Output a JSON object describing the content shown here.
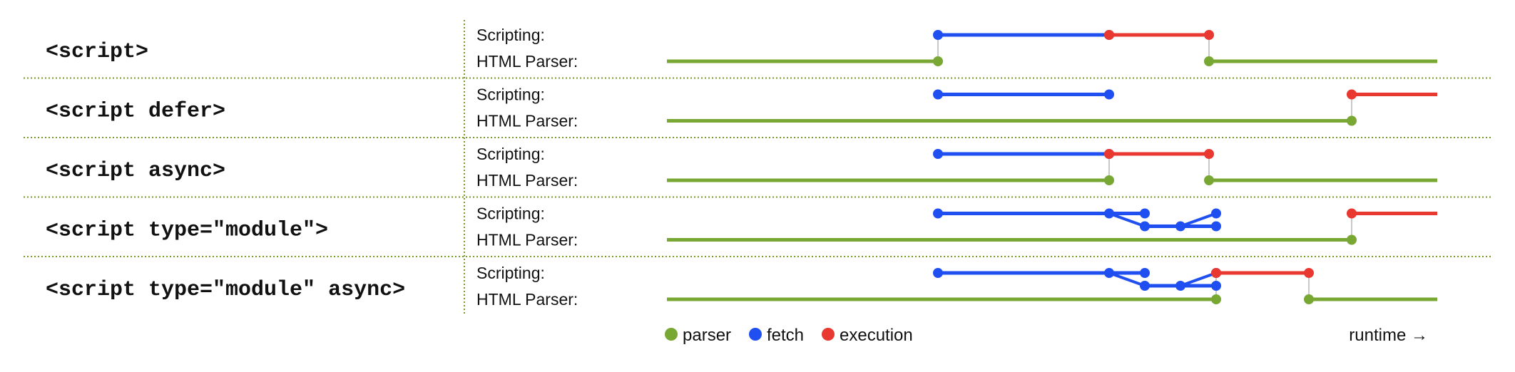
{
  "colors": {
    "parser": "#78a734",
    "fetch": "#1f4ff0",
    "execution": "#e8382f",
    "connector": "#c8c8c8",
    "separator": "#7a9a2a"
  },
  "row_labels": {
    "scripting": "Scripting:",
    "parser": "HTML Parser:"
  },
  "legend": {
    "parser": "parser",
    "fetch": "fetch",
    "execution": "execution",
    "runtime": "runtime →"
  },
  "rows": [
    {
      "label": "<script>",
      "parser": [
        [
          0,
          38
        ],
        [
          76,
          108
        ]
      ],
      "scripting": [
        {
          "type": "fetch",
          "from": 38,
          "to": 62
        },
        {
          "type": "execution",
          "from": 62,
          "to": 76
        }
      ],
      "fetch_dots": [
        38,
        62
      ],
      "exec_dots": [
        62,
        76
      ],
      "parser_dots": [
        38,
        76
      ],
      "connectors": [
        38,
        76
      ],
      "deps": []
    },
    {
      "label": "<script defer>",
      "parser": [
        [
          0,
          96
        ]
      ],
      "scripting": [
        {
          "type": "fetch",
          "from": 38,
          "to": 62
        },
        {
          "type": "execution",
          "from": 96,
          "to": 108
        }
      ],
      "fetch_dots": [
        38,
        62
      ],
      "exec_dots": [
        96
      ],
      "parser_dots": [
        96
      ],
      "connectors": [
        96
      ],
      "deps": []
    },
    {
      "label": "<script async>",
      "parser": [
        [
          0,
          62
        ],
        [
          76,
          108
        ]
      ],
      "scripting": [
        {
          "type": "fetch",
          "from": 38,
          "to": 62
        },
        {
          "type": "execution",
          "from": 62,
          "to": 76
        }
      ],
      "fetch_dots": [
        38,
        62
      ],
      "exec_dots": [
        62,
        76
      ],
      "parser_dots": [
        62,
        76
      ],
      "connectors": [
        62,
        76
      ],
      "deps": []
    },
    {
      "label": "<script type=\"module\">",
      "parser": [
        [
          0,
          96
        ]
      ],
      "scripting": [
        {
          "type": "fetch",
          "from": 38,
          "to": 62
        },
        {
          "type": "execution",
          "from": 96,
          "to": 108
        }
      ],
      "fetch_dots": [
        38,
        62
      ],
      "exec_dots": [
        96
      ],
      "parser_dots": [
        96
      ],
      "connectors": [
        96
      ],
      "deps": [
        {
          "start": 62,
          "top_end": 67,
          "low_from": 67,
          "low_to": 77,
          "rise_to": 72
        }
      ]
    },
    {
      "label": "<script type=\"module\" async>",
      "parser": [
        [
          0,
          77
        ],
        [
          90,
          108
        ]
      ],
      "scripting": [
        {
          "type": "fetch",
          "from": 38,
          "to": 62
        },
        {
          "type": "execution",
          "from": 77,
          "to": 90
        }
      ],
      "fetch_dots": [
        38,
        62
      ],
      "exec_dots": [
        77,
        90
      ],
      "parser_dots": [
        77,
        90
      ],
      "connectors": [
        77,
        90
      ],
      "deps": [
        {
          "start": 62,
          "top_end": 67,
          "low_from": 67,
          "low_to": 77,
          "rise_to": 72
        }
      ]
    }
  ]
}
